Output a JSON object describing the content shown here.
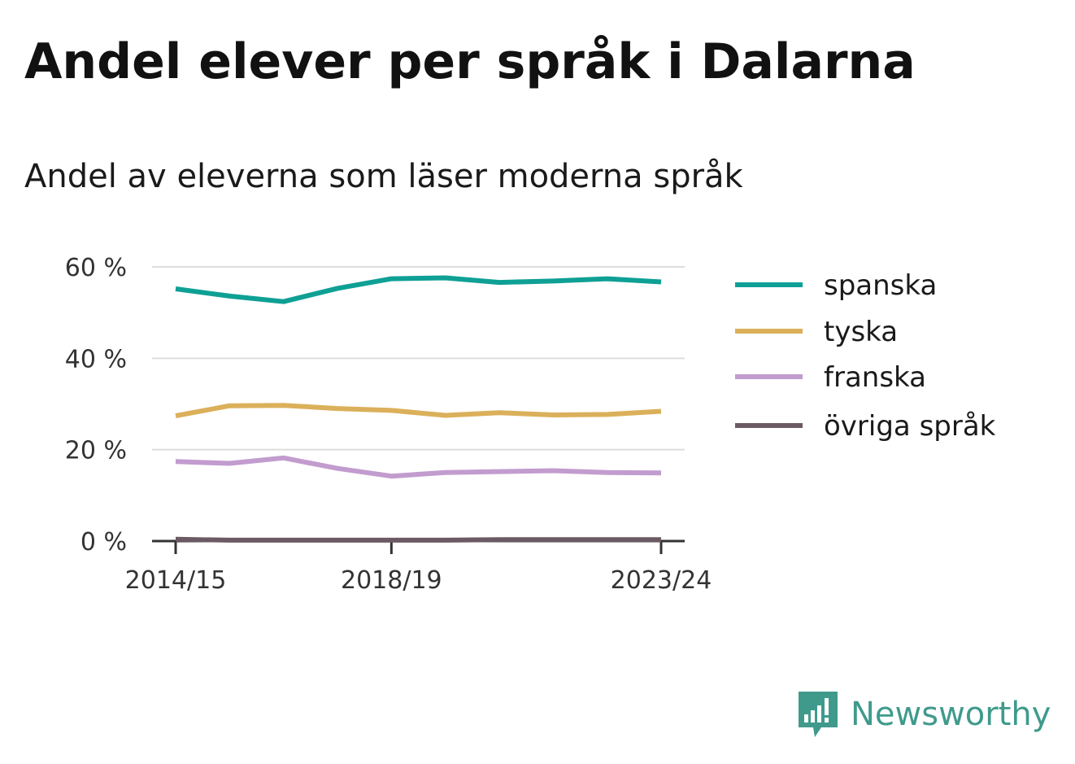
{
  "title": "Andel elever per språk i Dalarna",
  "subtitle": "Andel av eleverna som läser moderna språk",
  "brand": {
    "name": "Newsworthy",
    "icon": "newsworthy-logo-icon",
    "color": "#3f9a8c"
  },
  "chart_data": {
    "type": "line",
    "title": "",
    "xlabel": "",
    "ylabel": "",
    "x": [
      "2014/15",
      "2015/16",
      "2016/17",
      "2017/18",
      "2018/19",
      "2019/20",
      "2020/21",
      "2021/22",
      "2022/23",
      "2023/24"
    ],
    "x_ticks": [
      "2014/15",
      "2018/19",
      "2023/24"
    ],
    "y_ticks": [
      "0 %",
      "20 %",
      "40 %",
      "60 %"
    ],
    "ylim": [
      0,
      60
    ],
    "grid": true,
    "legend": "right",
    "series": [
      {
        "name": "spanska",
        "color": "#0fa095",
        "values": [
          55.2,
          53.6,
          52.4,
          55.3,
          57.4,
          57.6,
          56.6,
          56.9,
          57.4,
          56.7
        ]
      },
      {
        "name": "tyska",
        "color": "#dbb05a",
        "values": [
          27.4,
          29.6,
          29.7,
          29.0,
          28.6,
          27.5,
          28.1,
          27.6,
          27.7,
          28.4
        ]
      },
      {
        "name": "franska",
        "color": "#c29ccf",
        "values": [
          17.4,
          17.0,
          18.2,
          15.9,
          14.2,
          15.0,
          15.2,
          15.4,
          15.0,
          14.9
        ]
      },
      {
        "name": "övriga språk",
        "color": "#6b5a63",
        "values": [
          0.4,
          0.2,
          0.2,
          0.2,
          0.2,
          0.2,
          0.3,
          0.3,
          0.3,
          0.3
        ]
      }
    ]
  }
}
